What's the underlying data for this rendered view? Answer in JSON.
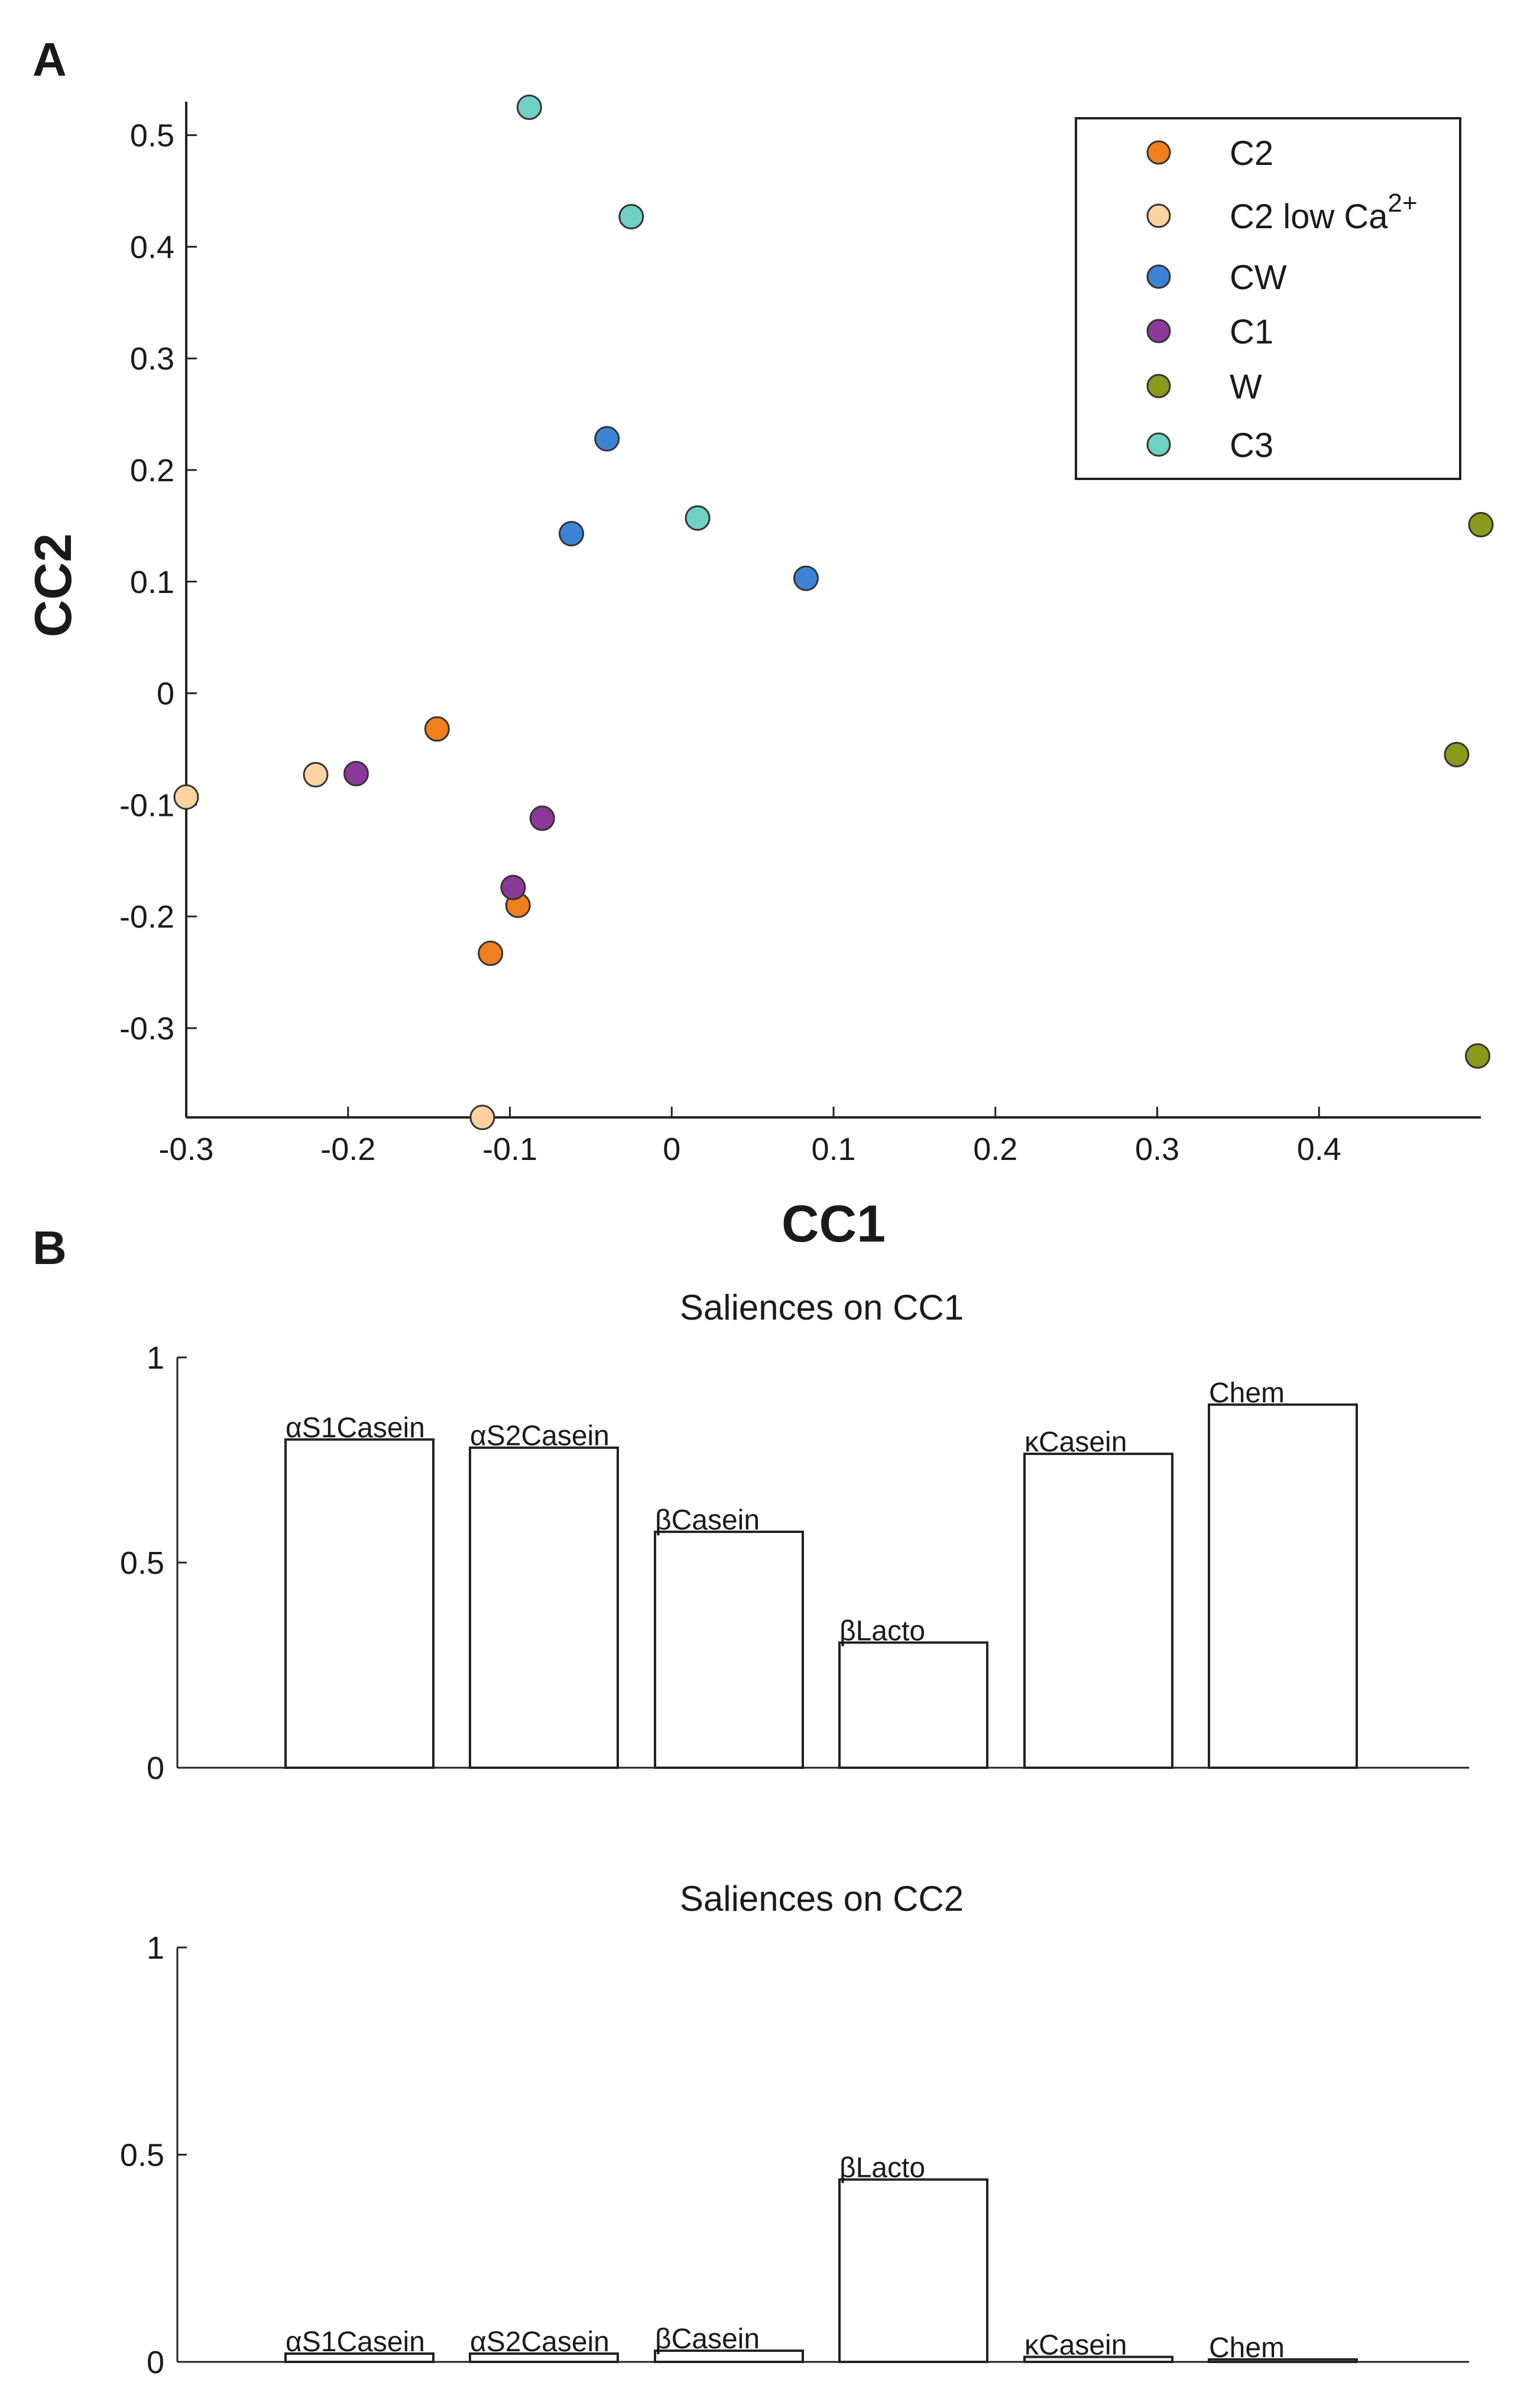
{
  "panel_labels": {
    "a": "A",
    "b": "B"
  },
  "chart_data": [
    {
      "type": "scatter",
      "title": "",
      "xlabel": "CC1",
      "ylabel": "CC2",
      "xlim": [
        -0.3,
        0.5
      ],
      "ylim": [
        -0.38,
        0.53
      ],
      "xticks": [
        -0.3,
        -0.2,
        -0.1,
        0,
        0.1,
        0.2,
        0.3,
        0.4
      ],
      "yticks": [
        0.5,
        0.4,
        0.3,
        0.2,
        0.1,
        0,
        -0.1,
        -0.2,
        -0.3
      ],
      "grid": false,
      "legend_position": "top-right",
      "series": [
        {
          "name": "C2",
          "name_base": "C2",
          "name_sup": "",
          "color": "#f07f1d",
          "points": [
            [
              -0.145,
              -0.032
            ],
            [
              -0.095,
              -0.19
            ],
            [
              -0.112,
              -0.233
            ]
          ]
        },
        {
          "name": "C2 low Ca2+",
          "name_base": "C2 low Ca",
          "name_sup": "2+",
          "color": "#fcd2a1",
          "points": [
            [
              -0.3,
              -0.093
            ],
            [
              -0.22,
              -0.073
            ],
            [
              -0.117,
              -0.38
            ]
          ]
        },
        {
          "name": "CW",
          "name_base": "CW",
          "name_sup": "",
          "color": "#3c83d6",
          "points": [
            [
              -0.04,
              0.228
            ],
            [
              -0.062,
              0.143
            ],
            [
              0.083,
              0.103
            ]
          ]
        },
        {
          "name": "C1",
          "name_base": "C1",
          "name_sup": "",
          "color": "#8b3a9a",
          "points": [
            [
              -0.195,
              -0.072
            ],
            [
              -0.08,
              -0.112
            ],
            [
              -0.098,
              -0.174
            ]
          ]
        },
        {
          "name": "W",
          "name_base": "W",
          "name_sup": "",
          "color": "#8a9a1b",
          "points": [
            [
              0.5,
              0.151
            ],
            [
              0.485,
              -0.055
            ],
            [
              0.498,
              -0.325
            ]
          ]
        },
        {
          "name": "C3",
          "name_base": "C3",
          "name_sup": "",
          "color": "#6fd0c4",
          "points": [
            [
              -0.088,
              0.525
            ],
            [
              -0.025,
              0.427
            ],
            [
              0.016,
              0.157
            ]
          ]
        }
      ]
    },
    {
      "type": "bar",
      "title": "Saliences on CC1",
      "categories": [
        "αS1Casein",
        "αS2Casein",
        "βCasein",
        "βLacto",
        "κCasein",
        "Chem"
      ],
      "values": [
        0.8,
        0.78,
        0.575,
        0.305,
        0.765,
        0.885
      ],
      "ylim": [
        0,
        1
      ],
      "yticks": [
        1,
        0.5,
        0
      ],
      "xlabel": "",
      "ylabel": ""
    },
    {
      "type": "bar",
      "title": "Saliences on CC2",
      "categories": [
        "αS1Casein",
        "αS2Casein",
        "βCasein",
        "βLacto",
        "κCasein",
        "Chem"
      ],
      "values": [
        0.02,
        0.02,
        0.027,
        0.44,
        0.012,
        0.006
      ],
      "ylim": [
        0,
        1
      ],
      "yticks": [
        1,
        0.5,
        0
      ],
      "xlabel": "",
      "ylabel": ""
    }
  ]
}
